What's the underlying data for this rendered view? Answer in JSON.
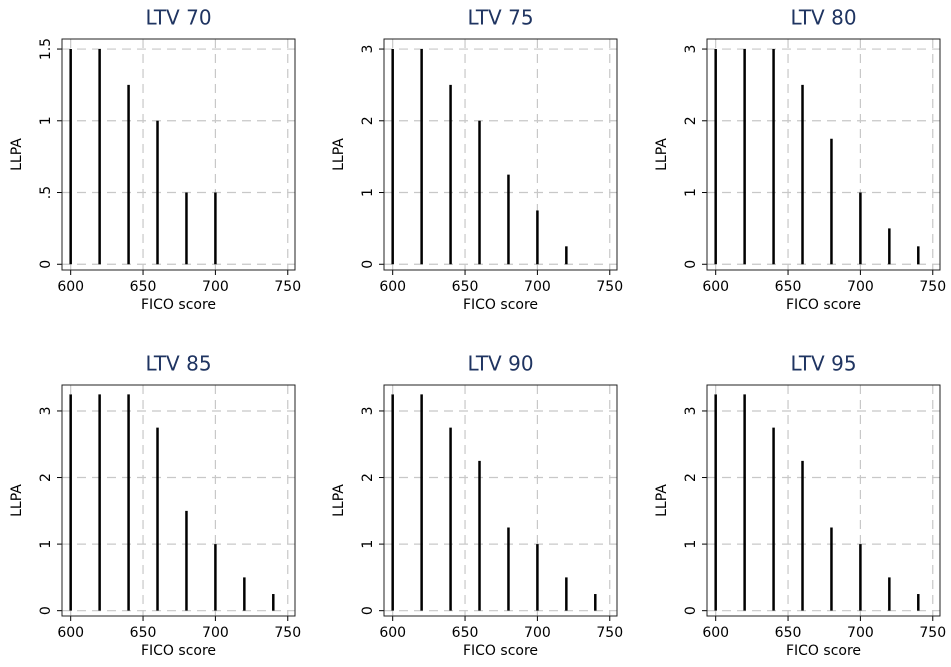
{
  "chart_data": [
    {
      "type": "bar",
      "title": "LTV 70",
      "xlabel": "FICO score",
      "ylabel": "LLPA",
      "x": [
        600,
        620,
        640,
        660,
        680,
        700
      ],
      "values": [
        1.5,
        1.5,
        1.25,
        1,
        0.5,
        0.5
      ],
      "xlim": [
        594,
        755
      ],
      "xticks": [
        600,
        650,
        700,
        750
      ],
      "ylim": [
        -0.04,
        1.57
      ],
      "yticks": [
        0,
        {
          "value": 0.5,
          "label": ".5"
        },
        1,
        1.5
      ],
      "grid": true,
      "color": "#000000"
    },
    {
      "type": "bar",
      "title": "LTV 75",
      "xlabel": "FICO score",
      "ylabel": "LLPA",
      "x": [
        600,
        620,
        640,
        660,
        680,
        700,
        720
      ],
      "values": [
        3,
        3,
        2.5,
        2,
        1.25,
        0.75,
        0.25
      ],
      "xlim": [
        594,
        755
      ],
      "xticks": [
        600,
        650,
        700,
        750
      ],
      "ylim": [
        -0.08,
        3.14
      ],
      "yticks": [
        0,
        1,
        2,
        3
      ],
      "grid": true,
      "color": "#000000"
    },
    {
      "type": "bar",
      "title": "LTV 80",
      "xlabel": "FICO score",
      "ylabel": "LLPA",
      "x": [
        600,
        620,
        640,
        660,
        680,
        700,
        720,
        740
      ],
      "values": [
        3,
        3,
        3,
        2.5,
        1.75,
        1,
        0.5,
        0.25
      ],
      "xlim": [
        594,
        755
      ],
      "xticks": [
        600,
        650,
        700,
        750
      ],
      "ylim": [
        -0.08,
        3.14
      ],
      "yticks": [
        0,
        1,
        2,
        3
      ],
      "grid": true,
      "color": "#000000"
    },
    {
      "type": "bar",
      "title": "LTV 85",
      "xlabel": "FICO score",
      "ylabel": "LLPA",
      "x": [
        600,
        620,
        640,
        660,
        680,
        700,
        720,
        740
      ],
      "values": [
        3.25,
        3.25,
        3.25,
        2.75,
        1.5,
        1,
        0.5,
        0.25
      ],
      "xlim": [
        594,
        755
      ],
      "xticks": [
        600,
        650,
        700,
        750
      ],
      "ylim": [
        -0.08,
        3.39
      ],
      "yticks": [
        0,
        1,
        2,
        3
      ],
      "grid": true,
      "color": "#000000"
    },
    {
      "type": "bar",
      "title": "LTV 90",
      "xlabel": "FICO score",
      "ylabel": "LLPA",
      "x": [
        600,
        620,
        640,
        660,
        680,
        700,
        720,
        740
      ],
      "values": [
        3.25,
        3.25,
        2.75,
        2.25,
        1.25,
        1,
        0.5,
        0.25
      ],
      "xlim": [
        594,
        755
      ],
      "xticks": [
        600,
        650,
        700,
        750
      ],
      "ylim": [
        -0.08,
        3.39
      ],
      "yticks": [
        0,
        1,
        2,
        3
      ],
      "grid": true,
      "color": "#000000"
    },
    {
      "type": "bar",
      "title": "LTV 95",
      "xlabel": "FICO score",
      "ylabel": "LLPA",
      "x": [
        600,
        620,
        640,
        660,
        680,
        700,
        720,
        740
      ],
      "values": [
        3.25,
        3.25,
        2.75,
        2.25,
        1.25,
        1,
        0.5,
        0.25
      ],
      "xlim": [
        594,
        755
      ],
      "xticks": [
        600,
        650,
        700,
        750
      ],
      "ylim": [
        -0.08,
        3.39
      ],
      "yticks": [
        0,
        1,
        2,
        3
      ],
      "grid": true,
      "color": "#000000"
    }
  ]
}
